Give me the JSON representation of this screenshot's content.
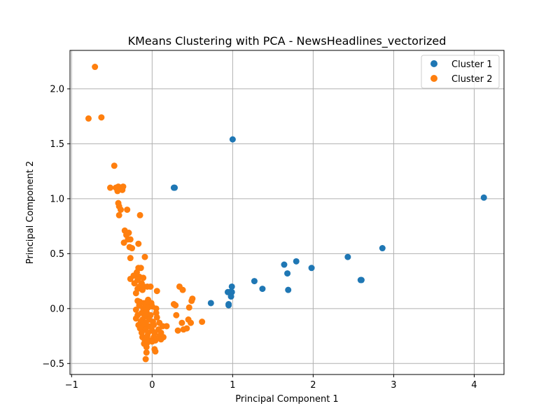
{
  "chart_data": {
    "type": "scatter",
    "title": "KMeans Clustering with PCA - NewsHeadlines_vectorized",
    "xlabel": "Principal Component 1",
    "ylabel": "Principal Component 2",
    "xlim": [
      -1.02,
      4.37
    ],
    "ylim": [
      -0.6,
      2.35
    ],
    "xticks": [
      -1,
      0,
      1,
      2,
      3,
      4
    ],
    "xtick_labels": [
      "−1",
      "0",
      "1",
      "2",
      "3",
      "4"
    ],
    "yticks": [
      -0.5,
      0.0,
      0.5,
      1.0,
      1.5,
      2.0
    ],
    "ytick_labels": [
      "−0.5",
      "0.0",
      "0.5",
      "1.0",
      "1.5",
      "2.0"
    ],
    "grid": true,
    "legend_position": "top-right",
    "series": [
      {
        "name": "Cluster 1",
        "color": "#1f77b4",
        "points": [
          [
            0.27,
            1.1
          ],
          [
            0.28,
            1.1
          ],
          [
            1.0,
            1.54
          ],
          [
            4.12,
            1.01
          ],
          [
            2.86,
            0.55
          ],
          [
            2.43,
            0.47
          ],
          [
            2.59,
            0.26
          ],
          [
            2.6,
            0.26
          ],
          [
            1.79,
            0.43
          ],
          [
            1.64,
            0.4
          ],
          [
            1.68,
            0.32
          ],
          [
            1.98,
            0.37
          ],
          [
            1.27,
            0.25
          ],
          [
            1.37,
            0.18
          ],
          [
            1.69,
            0.17
          ],
          [
            0.99,
            0.2
          ],
          [
            0.94,
            0.15
          ],
          [
            0.97,
            0.15
          ],
          [
            0.99,
            0.15
          ],
          [
            0.98,
            0.11
          ],
          [
            0.73,
            0.05
          ],
          [
            0.95,
            0.04
          ],
          [
            0.95,
            0.03
          ]
        ]
      },
      {
        "name": "Cluster 2",
        "color": "#ff7f0e",
        "points": [
          [
            -0.71,
            2.2
          ],
          [
            -0.79,
            1.73
          ],
          [
            -0.63,
            1.74
          ],
          [
            -0.47,
            1.3
          ],
          [
            -0.52,
            1.1
          ],
          [
            -0.45,
            1.1
          ],
          [
            -0.42,
            1.11
          ],
          [
            -0.36,
            1.11
          ],
          [
            -0.37,
            1.08
          ],
          [
            -0.43,
            1.07
          ],
          [
            -0.42,
            0.96
          ],
          [
            -0.41,
            0.93
          ],
          [
            -0.39,
            0.9
          ],
          [
            -0.41,
            0.85
          ],
          [
            -0.31,
            0.9
          ],
          [
            -0.15,
            0.85
          ],
          [
            -0.34,
            0.71
          ],
          [
            -0.29,
            0.69
          ],
          [
            -0.32,
            0.67
          ],
          [
            -0.3,
            0.63
          ],
          [
            -0.27,
            0.63
          ],
          [
            -0.35,
            0.6
          ],
          [
            -0.28,
            0.56
          ],
          [
            -0.25,
            0.55
          ],
          [
            -0.17,
            0.59
          ],
          [
            -0.09,
            0.47
          ],
          [
            -0.27,
            0.46
          ],
          [
            -0.17,
            0.37
          ],
          [
            -0.14,
            0.37
          ],
          [
            -0.19,
            0.33
          ],
          [
            -0.23,
            0.3
          ],
          [
            -0.16,
            0.29
          ],
          [
            -0.11,
            0.28
          ],
          [
            -0.27,
            0.27
          ],
          [
            -0.18,
            0.26
          ],
          [
            -0.22,
            0.23
          ],
          [
            -0.13,
            0.23
          ],
          [
            -0.16,
            0.2
          ],
          [
            -0.1,
            0.2
          ],
          [
            -0.18,
            0.18
          ],
          [
            -0.12,
            0.17
          ],
          [
            -0.06,
            0.2
          ],
          [
            -0.2,
            0.14
          ],
          [
            -0.02,
            0.2
          ],
          [
            0.06,
            0.16
          ],
          [
            -0.18,
            0.07
          ],
          [
            -0.15,
            0.06
          ],
          [
            -0.1,
            0.05
          ],
          [
            -0.05,
            0.08
          ],
          [
            -0.07,
            0.04
          ],
          [
            -0.01,
            0.05
          ],
          [
            -0.16,
            0.03
          ],
          [
            -0.11,
            0.0
          ],
          [
            -0.05,
            0.01
          ],
          [
            0.0,
            0.02
          ],
          [
            0.05,
            0.0
          ],
          [
            -0.2,
            -0.01
          ],
          [
            -0.13,
            -0.04
          ],
          [
            -0.07,
            -0.03
          ],
          [
            0.05,
            -0.04
          ],
          [
            -0.18,
            -0.06
          ],
          [
            -0.09,
            -0.07
          ],
          [
            -0.02,
            -0.06
          ],
          [
            0.06,
            -0.08
          ],
          [
            -0.2,
            -0.09
          ],
          [
            -0.12,
            -0.1
          ],
          [
            -0.04,
            -0.1
          ],
          [
            -0.14,
            -0.12
          ],
          [
            -0.08,
            -0.13
          ],
          [
            0.01,
            -0.12
          ],
          [
            0.09,
            -0.13
          ],
          [
            -0.17,
            -0.15
          ],
          [
            -0.1,
            -0.16
          ],
          [
            -0.04,
            -0.16
          ],
          [
            0.02,
            -0.15
          ],
          [
            0.13,
            -0.16
          ],
          [
            0.18,
            -0.16
          ],
          [
            -0.15,
            -0.18
          ],
          [
            -0.08,
            -0.19
          ],
          [
            0.0,
            -0.2
          ],
          [
            0.08,
            -0.19
          ],
          [
            -0.13,
            -0.22
          ],
          [
            -0.05,
            -0.22
          ],
          [
            0.03,
            -0.22
          ],
          [
            0.11,
            -0.22
          ],
          [
            -0.12,
            -0.26
          ],
          [
            -0.06,
            -0.25
          ],
          [
            0.02,
            -0.26
          ],
          [
            0.09,
            -0.25
          ],
          [
            0.14,
            -0.26
          ],
          [
            -0.09,
            -0.29
          ],
          [
            -0.03,
            -0.29
          ],
          [
            0.04,
            -0.29
          ],
          [
            0.11,
            -0.28
          ],
          [
            -0.1,
            -0.32
          ],
          [
            -0.06,
            -0.31
          ],
          [
            0.0,
            -0.3
          ],
          [
            -0.07,
            -0.35
          ],
          [
            0.03,
            -0.37
          ],
          [
            -0.07,
            -0.4
          ],
          [
            0.04,
            -0.39
          ],
          [
            -0.08,
            -0.46
          ],
          [
            0.27,
            0.04
          ],
          [
            0.29,
            0.03
          ],
          [
            0.3,
            -0.06
          ],
          [
            0.34,
            0.2
          ],
          [
            0.38,
            0.17
          ],
          [
            0.37,
            -0.13
          ],
          [
            0.32,
            -0.2
          ],
          [
            0.39,
            -0.19
          ],
          [
            0.43,
            -0.18
          ],
          [
            0.45,
            -0.1
          ],
          [
            0.46,
            0.01
          ],
          [
            0.48,
            -0.13
          ],
          [
            0.49,
            0.07
          ],
          [
            0.5,
            0.09
          ],
          [
            0.62,
            -0.12
          ]
        ]
      }
    ]
  }
}
